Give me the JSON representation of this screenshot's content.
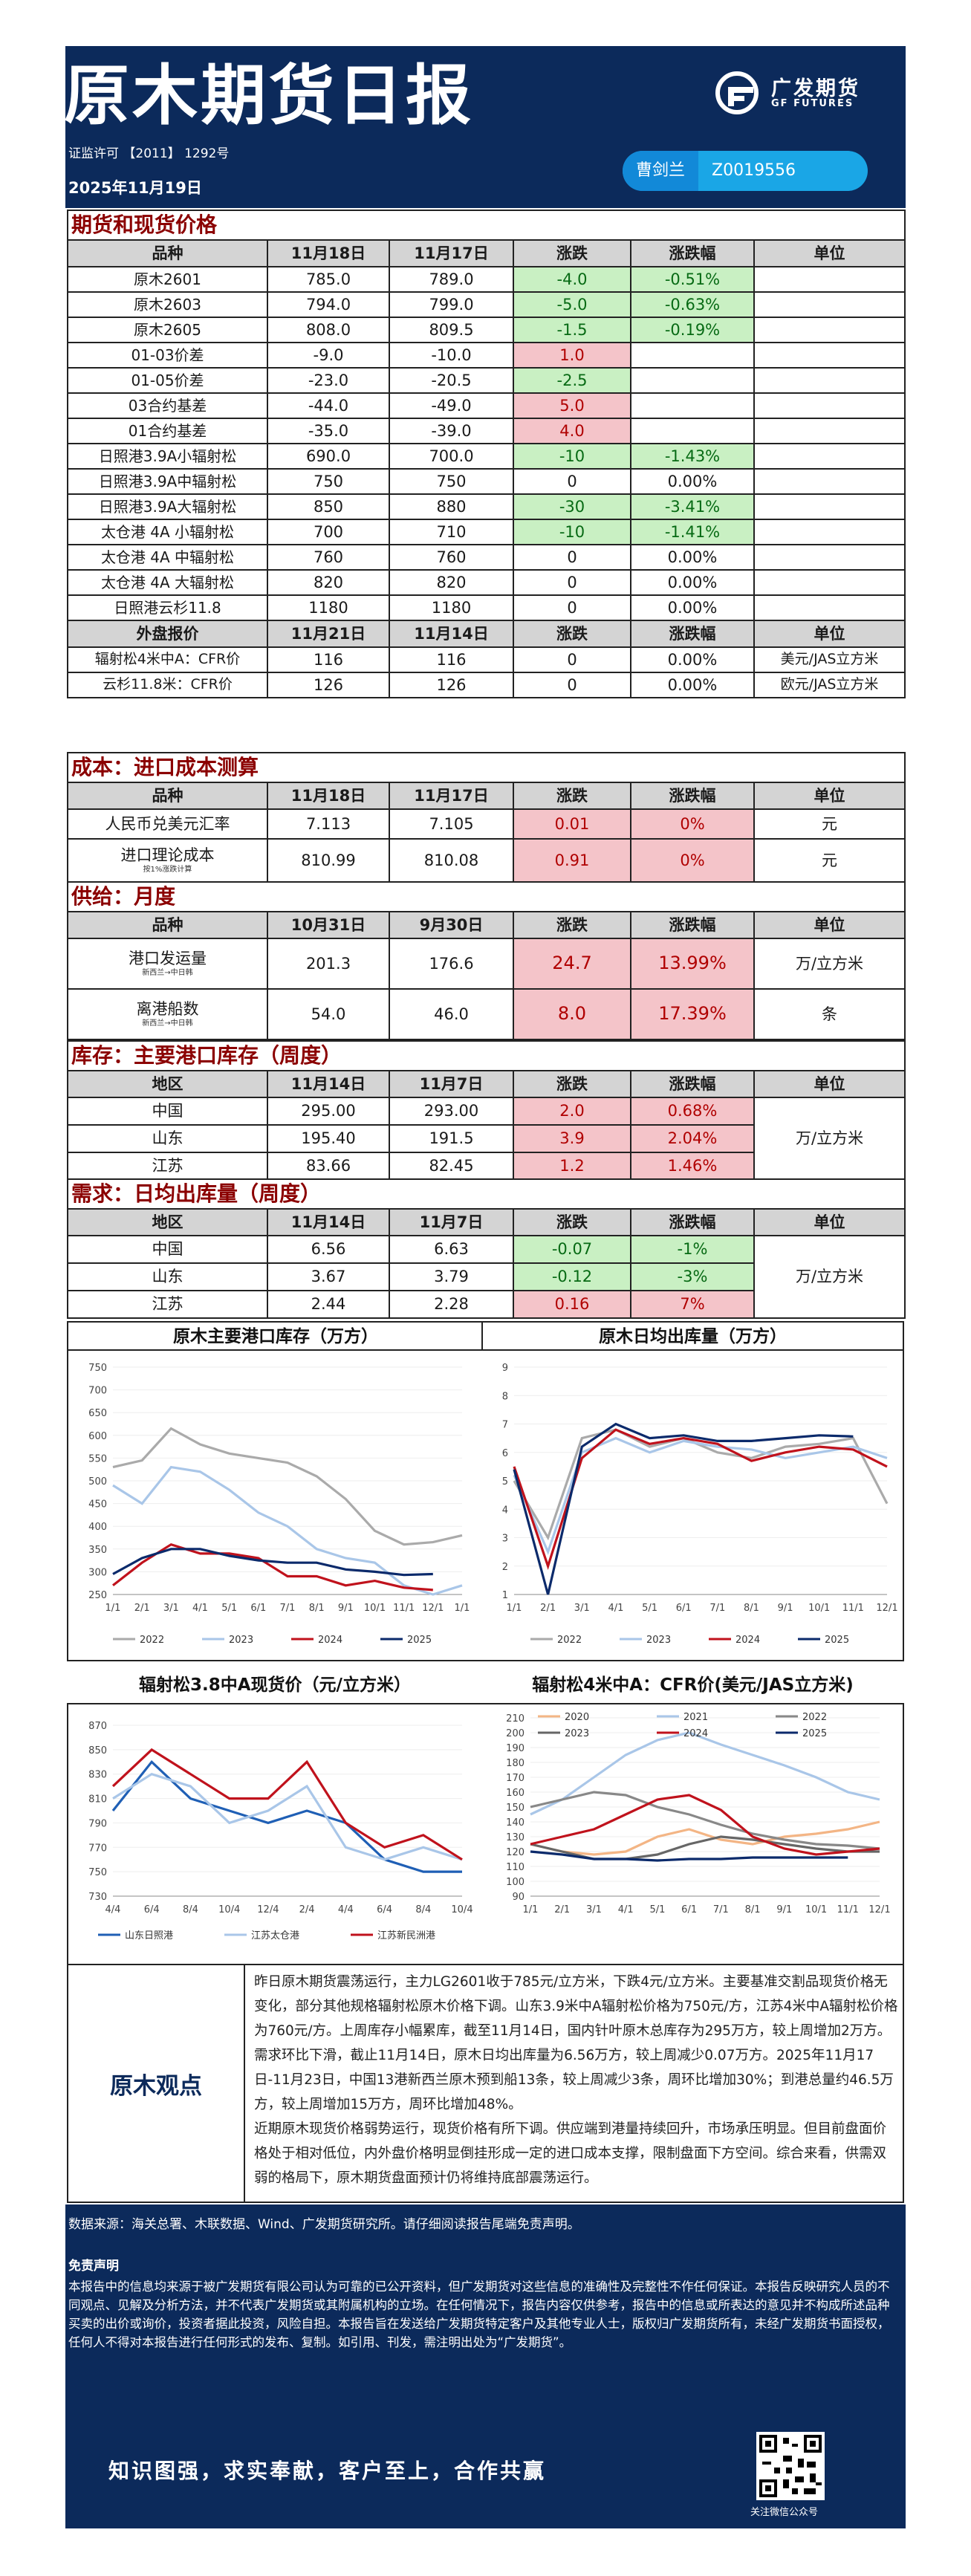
{
  "header": {
    "title": "原木期货日报",
    "license": "证监许可 【2011】 1292号",
    "date": "2025年11月19日",
    "logo_cn": "广发期货",
    "logo_en": "GF FUTURES",
    "author_name": "曹剑兰",
    "author_code": "Z0019556"
  },
  "futures": {
    "section": "期货和现货价格",
    "headers": [
      "品种",
      "11月18日",
      "11月17日",
      "涨跌",
      "涨跌幅",
      "单位"
    ],
    "rows": [
      [
        "原木2601",
        "785.0",
        "789.0",
        "-4.0",
        "-0.51%",
        ""
      ],
      [
        "原木2603",
        "794.0",
        "799.0",
        "-5.0",
        "-0.63%",
        ""
      ],
      [
        "原木2605",
        "808.0",
        "809.5",
        "-1.5",
        "-0.19%",
        ""
      ],
      [
        "01-03价差",
        "-9.0",
        "-10.0",
        "1.0",
        "",
        ""
      ],
      [
        "01-05价差",
        "-23.0",
        "-20.5",
        "-2.5",
        "",
        ""
      ],
      [
        "03合约基差",
        "-44.0",
        "-49.0",
        "5.0",
        "",
        ""
      ],
      [
        "01合约基差",
        "-35.0",
        "-39.0",
        "4.0",
        "",
        ""
      ],
      [
        "日照港3.9A小辐射松",
        "690.0",
        "700.0",
        "-10",
        "-1.43%",
        ""
      ],
      [
        "日照港3.9A中辐射松",
        "750",
        "750",
        "0",
        "0.00%",
        ""
      ],
      [
        "日照港3.9A大辐射松",
        "850",
        "880",
        "-30",
        "-3.41%",
        ""
      ],
      [
        "太仓港 4A 小辐射松",
        "700",
        "710",
        "-10",
        "-1.41%",
        ""
      ],
      [
        "太仓港 4A 中辐射松",
        "760",
        "760",
        "0",
        "0.00%",
        ""
      ],
      [
        "太仓港 4A 大辐射松",
        "820",
        "820",
        "0",
        "0.00%",
        ""
      ],
      [
        "日照港云杉11.8",
        "1180",
        "1180",
        "0",
        "0.00%",
        ""
      ]
    ],
    "ext_headers": [
      "外盘报价",
      "11月21日",
      "11月14日",
      "涨跌",
      "涨跌幅",
      "单位"
    ],
    "ext_rows": [
      [
        "辐射松4米中A：CFR价",
        "116",
        "116",
        "0",
        "0.00%",
        "美元/JAS立方米"
      ],
      [
        "云杉11.8米：CFR价",
        "126",
        "126",
        "0",
        "0.00%",
        "欧元/JAS立方米"
      ]
    ]
  },
  "cost": {
    "section": "成本：进口成本测算",
    "headers": [
      "品种",
      "11月18日",
      "11月17日",
      "涨跌",
      "涨跌幅",
      "单位"
    ],
    "rows": [
      {
        "name": "人民币兑美元汇率",
        "sub": "",
        "a": "7.113",
        "b": "7.105",
        "chg": "0.01",
        "pct": "0%",
        "unit": "元"
      },
      {
        "name": "进口理论成本",
        "sub": "按1%涨跌计算",
        "a": "810.99",
        "b": "810.08",
        "chg": "0.91",
        "pct": "0%",
        "unit": "元"
      }
    ]
  },
  "supply": {
    "section": "供给：月度",
    "headers": [
      "品种",
      "10月31日",
      "9月30日",
      "涨跌",
      "涨跌幅",
      "单位"
    ],
    "rows": [
      {
        "name": "港口发运量",
        "sub": "新西兰→中日韩",
        "a": "201.3",
        "b": "176.6",
        "chg": "24.7",
        "pct": "13.99%",
        "unit": "万/立方米"
      },
      {
        "name": "离港船数",
        "sub": "新西兰→中日韩",
        "a": "54.0",
        "b": "46.0",
        "chg": "8.0",
        "pct": "17.39%",
        "unit": "条"
      }
    ]
  },
  "inventory": {
    "section": "库存：主要港口库存（周度）",
    "headers": [
      "地区",
      "11月14日",
      "11月7日",
      "涨跌",
      "涨跌幅",
      "单位"
    ],
    "rows": [
      [
        "中国",
        "295.00",
        "293.00",
        "2.0",
        "0.68%"
      ],
      [
        "山东",
        "195.40",
        "191.5",
        "3.9",
        "2.04%"
      ],
      [
        "江苏",
        "83.66",
        "82.45",
        "1.2",
        "1.46%"
      ]
    ],
    "unit": "万/立方米"
  },
  "demand": {
    "section": "需求：日均出库量（周度）",
    "headers": [
      "地区",
      "11月14日",
      "11月7日",
      "涨跌",
      "涨跌幅",
      "单位"
    ],
    "rows": [
      [
        "中国",
        "6.56",
        "6.63",
        "-0.07",
        "-1%"
      ],
      [
        "山东",
        "3.67",
        "3.79",
        "-0.12",
        "-3%"
      ],
      [
        "江苏",
        "2.44",
        "2.28",
        "0.16",
        "7%"
      ]
    ],
    "unit": "万/立方米"
  },
  "charts": {
    "c1": {
      "title": "原木主要港口库存（万方）",
      "yticks": [
        "750",
        "700",
        "650",
        "600",
        "550",
        "500",
        "450",
        "400",
        "350",
        "300",
        "250"
      ],
      "xticks": [
        "1/1",
        "2/1",
        "3/1",
        "4/1",
        "5/1",
        "6/1",
        "7/1",
        "8/1",
        "9/1",
        "10/1",
        "11/1",
        "12/1",
        "1/1"
      ],
      "legend": [
        "2022",
        "2023",
        "2024",
        "2025"
      ],
      "colors": [
        "#aaaaaa",
        "#a9c6e8",
        "#c0121c",
        "#0b2a6b"
      ]
    },
    "c2": {
      "title": "原木日均出库量（万方）",
      "yticks": [
        "9",
        "8",
        "7",
        "6",
        "5",
        "4",
        "3",
        "2",
        "1"
      ],
      "xticks": [
        "1/1",
        "2/1",
        "3/1",
        "4/1",
        "5/1",
        "6/1",
        "7/1",
        "8/1",
        "9/1",
        "10/1",
        "11/1",
        "12/1"
      ],
      "legend": [
        "2022",
        "2023",
        "2024",
        "2025"
      ],
      "colors": [
        "#aaaaaa",
        "#a9c6e8",
        "#c0121c",
        "#0b2a6b"
      ]
    },
    "c3": {
      "title": "辐射松3.8中A现货价（元/立方米）",
      "yticks": [
        "870",
        "850",
        "830",
        "810",
        "790",
        "770",
        "750",
        "730"
      ],
      "xticks": [
        "4/4",
        "6/4",
        "8/4",
        "10/4",
        "12/4",
        "2/4",
        "4/4",
        "6/4",
        "8/4",
        "10/4"
      ],
      "legend": [
        "山东日照港",
        "江苏太仓港",
        "江苏新民洲港"
      ],
      "colors": [
        "#1f5fb5",
        "#a9c6e8",
        "#c0121c"
      ]
    },
    "c4": {
      "title": "辐射松4米中A：CFR价(美元/JAS立方米)",
      "yticks": [
        "210",
        "200",
        "190",
        "180",
        "170",
        "160",
        "150",
        "140",
        "130",
        "120",
        "110",
        "100",
        "90"
      ],
      "xticks": [
        "1/1",
        "2/1",
        "3/1",
        "4/1",
        "5/1",
        "6/1",
        "7/1",
        "8/1",
        "9/1",
        "10/1",
        "11/1",
        "12/1"
      ],
      "legend": [
        "2020",
        "2021",
        "2022",
        "2023",
        "2024",
        "2025"
      ],
      "colors": [
        "#f3b585",
        "#a9c6e8",
        "#888888",
        "#666666",
        "#c0121c",
        "#0b2a6b"
      ]
    }
  },
  "chart_data": [
    {
      "type": "line",
      "title": "原木主要港口库存（万方）",
      "x": [
        "1/1",
        "2/1",
        "3/1",
        "4/1",
        "5/1",
        "6/1",
        "7/1",
        "8/1",
        "9/1",
        "10/1",
        "11/1",
        "12/1",
        "1/1"
      ],
      "ylim": [
        250,
        750
      ],
      "series": [
        {
          "name": "2022",
          "values": [
            530,
            545,
            615,
            580,
            560,
            550,
            540,
            510,
            460,
            390,
            360,
            365,
            380
          ]
        },
        {
          "name": "2023",
          "values": [
            490,
            450,
            530,
            520,
            480,
            430,
            400,
            350,
            330,
            320,
            270,
            250,
            270
          ]
        },
        {
          "name": "2024",
          "values": [
            270,
            320,
            360,
            340,
            340,
            330,
            290,
            290,
            270,
            280,
            265,
            260,
            null
          ]
        },
        {
          "name": "2025",
          "values": [
            295,
            330,
            350,
            350,
            335,
            325,
            320,
            320,
            305,
            300,
            293,
            295,
            null
          ]
        }
      ]
    },
    {
      "type": "line",
      "title": "原木日均出库量（万方）",
      "x": [
        "1/1",
        "2/1",
        "3/1",
        "4/1",
        "5/1",
        "6/1",
        "7/1",
        "8/1",
        "9/1",
        "10/1",
        "11/1",
        "12/1"
      ],
      "ylim": [
        1,
        9
      ],
      "series": [
        {
          "name": "2022",
          "values": [
            5.0,
            3.0,
            6.5,
            6.8,
            6.2,
            6.5,
            6.0,
            5.8,
            6.2,
            6.3,
            6.5,
            4.2
          ]
        },
        {
          "name": "2023",
          "values": [
            5.2,
            2.5,
            6.0,
            6.5,
            6.0,
            6.4,
            6.2,
            6.1,
            5.8,
            6.0,
            6.2,
            5.8
          ]
        },
        {
          "name": "2024",
          "values": [
            5.5,
            2.0,
            5.8,
            6.8,
            6.3,
            6.5,
            6.3,
            5.7,
            6.0,
            6.2,
            6.1,
            5.5
          ]
        },
        {
          "name": "2025",
          "values": [
            5.4,
            1.0,
            6.2,
            7.0,
            6.5,
            6.6,
            6.4,
            6.4,
            6.5,
            6.6,
            6.56,
            null
          ]
        }
      ]
    },
    {
      "type": "line",
      "title": "辐射松3.8中A现货价（元/立方米）",
      "x": [
        "4/4",
        "6/4",
        "8/4",
        "10/4",
        "12/4",
        "2/4",
        "4/4",
        "6/4",
        "8/4",
        "10/4"
      ],
      "ylim": [
        730,
        870
      ],
      "series": [
        {
          "name": "山东日照港",
          "values": [
            800,
            840,
            810,
            800,
            790,
            800,
            790,
            760,
            750,
            750
          ]
        },
        {
          "name": "江苏太仓港",
          "values": [
            810,
            830,
            820,
            790,
            800,
            820,
            770,
            760,
            770,
            760
          ]
        },
        {
          "name": "江苏新民洲港",
          "values": [
            820,
            850,
            830,
            810,
            810,
            840,
            790,
            770,
            780,
            760
          ]
        }
      ]
    },
    {
      "type": "line",
      "title": "辐射松4米中A：CFR价(美元/JAS立方米)",
      "x": [
        "1/1",
        "2/1",
        "3/1",
        "4/1",
        "5/1",
        "6/1",
        "7/1",
        "8/1",
        "9/1",
        "10/1",
        "11/1",
        "12/1"
      ],
      "ylim": [
        90,
        210
      ],
      "series": [
        {
          "name": "2020",
          "values": [
            125,
            120,
            118,
            120,
            130,
            135,
            128,
            125,
            130,
            132,
            135,
            140
          ]
        },
        {
          "name": "2021",
          "values": [
            145,
            155,
            170,
            185,
            195,
            200,
            192,
            185,
            178,
            170,
            160,
            155
          ]
        },
        {
          "name": "2022",
          "values": [
            150,
            155,
            160,
            158,
            150,
            145,
            138,
            132,
            128,
            125,
            124,
            122
          ]
        },
        {
          "name": "2023",
          "values": [
            125,
            120,
            115,
            115,
            118,
            125,
            130,
            128,
            125,
            122,
            120,
            120
          ]
        },
        {
          "name": "2024",
          "values": [
            125,
            130,
            135,
            145,
            155,
            158,
            148,
            130,
            122,
            118,
            120,
            122
          ]
        },
        {
          "name": "2025",
          "values": [
            120,
            118,
            115,
            115,
            114,
            115,
            115,
            116,
            116,
            116,
            116,
            null
          ]
        }
      ]
    }
  ],
  "view": {
    "label": "原木观点",
    "p1": "昨日原木期货震荡运行，主力LG2601收于785元/立方米，下跌4元/立方米。主要基准交割品现货价格无变化，部分其他规格辐射松原木价格下调。山东3.9米中A辐射松价格为750元/方，江苏4米中A辐射松价格为760元/方。上周库存小幅累库，截至11月14日，国内针叶原木总库存为295万方，较上周增加2万方。需求环比下滑，截止11月14日，原木日均出库量为6.56万方，较上周减少0.07万方。2025年11月17日-11月23日，中国13港新西兰原木预到船13条，较上周减少3条，周环比增加30%；到港总量约46.5万方，较上周增加15万方，周环比增加48%。",
    "p2": "近期原木现货价格弱势运行，现货价格有所下调。供应端到港量持续回升，市场承压明显。但目前盘面价格处于相对低位，内外盘价格明显倒挂形成一定的进口成本支撑，限制盘面下方空间。综合来看，供需双弱的格局下，原木期货盘面预计仍将维持底部震荡运行。"
  },
  "footer": {
    "source": "数据来源：海关总署、木联数据、Wind、广发期货研究所。请仔细阅读报告尾端免责声明。",
    "disclaimer_title": "免责声明",
    "disclaimer": "本报告中的信息均来源于被广发期货有限公司认为可靠的已公开资料，但广发期货对这些信息的准确性及完整性不作任何保证。本报告反映研究人员的不同观点、见解及分析方法，并不代表广发期货或其附属机构的立场。在任何情况下，报告内容仅供参考，报告中的信息或所表达的意见并不构成所述品种买卖的出价或询价，投资者据此投资，风险自担。本报告旨在发送给广发期货特定客户及其他专业人士，版权归广发期货所有，未经广发期货书面授权，任何人不得对本报告进行任何形式的发布、复制。如引用、刊发，需注明出处为“广发期货”。",
    "slogan": "知识图强，求实奉献，客户至上，合作共赢",
    "qr_caption": "关注微信公众号"
  }
}
